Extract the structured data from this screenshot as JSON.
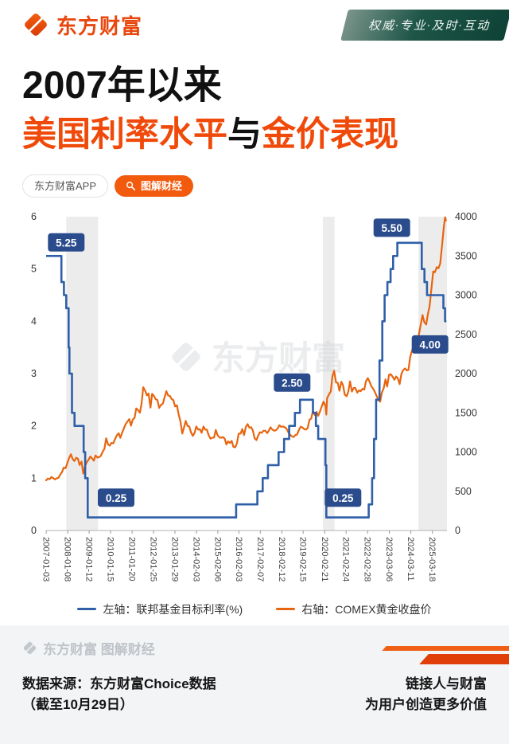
{
  "header": {
    "brand": "东方财富",
    "slogan": "权威·专业·及时·互动"
  },
  "title": {
    "line1": "2007年以来",
    "line2_part1": "美国利率水平",
    "line2_part2": "与",
    "line2_part3": "金价表现"
  },
  "badges": {
    "app": "东方财富APP",
    "channel": "图解财经"
  },
  "legend": [
    {
      "label": "左轴：联邦基金目标利率(%)",
      "color": "#2e5fa8"
    },
    {
      "label": "右轴：COMEX黄金收盘价",
      "color": "#e8650f"
    }
  ],
  "watermark": {
    "chart": "东方财富",
    "footer": "东方财富 图解财经"
  },
  "footer": {
    "source_line1": "数据来源：东方财富Choice数据",
    "source_line2": "（截至10月29日）",
    "slogan_line1": "链接人与财富",
    "slogan_line2": "为用户创造更多价值"
  },
  "colors": {
    "brand_orange": "#e8470d",
    "title_orange": "#f04a0b",
    "badge_orange": "#f25a0d",
    "fed_blue": "#2e5fa8",
    "gold_orange": "#e8650f",
    "annotation_navy": "#2b4c8c",
    "band_gray": "#ececec"
  },
  "chart_data": {
    "type": "line",
    "x_domain": [
      2007.0,
      2025.9
    ],
    "left_axis": {
      "label": "联邦基金目标利率(%)",
      "range": [
        0,
        6
      ],
      "ticks": [
        0,
        1,
        2,
        3,
        4,
        5,
        6
      ]
    },
    "right_axis": {
      "label": "COMEX黄金收盘价",
      "range": [
        0,
        4000
      ],
      "ticks": [
        0,
        500,
        1000,
        1500,
        2000,
        2500,
        3000,
        3500,
        4000
      ]
    },
    "x_tick_labels": [
      "2007-01-03",
      "2008-01-08",
      "2009-01-12",
      "2010-01-15",
      "2011-01-20",
      "2012-01-25",
      "2013-01-29",
      "2014-02-03",
      "2015-02-06",
      "2016-02-03",
      "2017-02-07",
      "2018-02-12",
      "2019-02-15",
      "2020-02-21",
      "2021-02-24",
      "2022-02-28",
      "2023-03-06",
      "2024-03-11",
      "2025-03-18"
    ],
    "bands": [
      [
        2007.95,
        2009.45
      ],
      [
        2020.05,
        2020.6
      ],
      [
        2024.55,
        2025.9
      ]
    ],
    "annotations": [
      {
        "text": "5.25",
        "x": 2007.95,
        "y": 5.5
      },
      {
        "text": "0.25",
        "x": 2010.3,
        "y": 0.62
      },
      {
        "text": "2.50",
        "x": 2018.6,
        "y": 2.82
      },
      {
        "text": "0.25",
        "x": 2021.0,
        "y": 0.62
      },
      {
        "text": "5.50",
        "x": 2023.3,
        "y": 5.78
      },
      {
        "text": "4.00",
        "x": 2025.1,
        "y": 3.55
      }
    ],
    "series": [
      {
        "name": "联邦基金目标利率(%)",
        "axis": "left",
        "color": "#2e5fa8",
        "step": true,
        "points": [
          [
            2007.0,
            5.25
          ],
          [
            2007.72,
            4.75
          ],
          [
            2007.84,
            4.5
          ],
          [
            2007.95,
            4.25
          ],
          [
            2008.06,
            3.5
          ],
          [
            2008.1,
            3.0
          ],
          [
            2008.22,
            2.25
          ],
          [
            2008.34,
            2.0
          ],
          [
            2008.77,
            1.5
          ],
          [
            2008.84,
            1.0
          ],
          [
            2008.96,
            0.25
          ],
          [
            2015.96,
            0.5
          ],
          [
            2016.96,
            0.75
          ],
          [
            2017.21,
            1.0
          ],
          [
            2017.46,
            1.25
          ],
          [
            2017.96,
            1.5
          ],
          [
            2018.22,
            1.75
          ],
          [
            2018.46,
            2.0
          ],
          [
            2018.73,
            2.25
          ],
          [
            2018.97,
            2.5
          ],
          [
            2019.58,
            2.25
          ],
          [
            2019.72,
            2.0
          ],
          [
            2019.83,
            1.75
          ],
          [
            2020.17,
            1.25
          ],
          [
            2020.21,
            0.25
          ],
          [
            2022.21,
            0.5
          ],
          [
            2022.37,
            1.0
          ],
          [
            2022.46,
            1.75
          ],
          [
            2022.56,
            2.5
          ],
          [
            2022.72,
            3.25
          ],
          [
            2022.85,
            4.0
          ],
          [
            2022.96,
            4.5
          ],
          [
            2023.09,
            4.75
          ],
          [
            2023.24,
            5.0
          ],
          [
            2023.36,
            5.25
          ],
          [
            2023.56,
            5.5
          ],
          [
            2024.71,
            5.0
          ],
          [
            2024.84,
            4.75
          ],
          [
            2024.96,
            4.5
          ],
          [
            2025.73,
            4.25
          ],
          [
            2025.81,
            4.0
          ],
          [
            2025.87,
            4.0
          ]
        ]
      },
      {
        "name": "COMEX黄金收盘价",
        "axis": "right",
        "color": "#e8650f",
        "step": false,
        "points": [
          [
            2007.0,
            640
          ],
          [
            2007.08,
            662
          ],
          [
            2007.17,
            655
          ],
          [
            2007.25,
            682
          ],
          [
            2007.33,
            668
          ],
          [
            2007.42,
            652
          ],
          [
            2007.5,
            666
          ],
          [
            2007.58,
            672
          ],
          [
            2007.67,
            715
          ],
          [
            2007.75,
            745
          ],
          [
            2007.83,
            802
          ],
          [
            2007.92,
            794
          ],
          [
            2008.0,
            862
          ],
          [
            2008.08,
            922
          ],
          [
            2008.17,
            972
          ],
          [
            2008.25,
            912
          ],
          [
            2008.33,
            886
          ],
          [
            2008.42,
            928
          ],
          [
            2008.5,
            916
          ],
          [
            2008.58,
            836
          ],
          [
            2008.67,
            878
          ],
          [
            2008.75,
            726
          ],
          [
            2008.83,
            816
          ],
          [
            2008.92,
            872
          ],
          [
            2009.0,
            902
          ],
          [
            2009.08,
            942
          ],
          [
            2009.17,
            918
          ],
          [
            2009.25,
            890
          ],
          [
            2009.33,
            956
          ],
          [
            2009.42,
            930
          ],
          [
            2009.5,
            936
          ],
          [
            2009.58,
            952
          ],
          [
            2009.67,
            1006
          ],
          [
            2009.75,
            1042
          ],
          [
            2009.83,
            1176
          ],
          [
            2009.92,
            1096
          ],
          [
            2010.0,
            1082
          ],
          [
            2010.08,
            1116
          ],
          [
            2010.17,
            1112
          ],
          [
            2010.25,
            1166
          ],
          [
            2010.33,
            1212
          ],
          [
            2010.42,
            1240
          ],
          [
            2010.5,
            1182
          ],
          [
            2010.58,
            1246
          ],
          [
            2010.67,
            1306
          ],
          [
            2010.75,
            1356
          ],
          [
            2010.83,
            1386
          ],
          [
            2010.92,
            1420
          ],
          [
            2011.0,
            1336
          ],
          [
            2011.08,
            1412
          ],
          [
            2011.17,
            1436
          ],
          [
            2011.25,
            1556
          ],
          [
            2011.33,
            1536
          ],
          [
            2011.42,
            1502
          ],
          [
            2011.5,
            1616
          ],
          [
            2011.58,
            1826
          ],
          [
            2011.67,
            1782
          ],
          [
            2011.75,
            1722
          ],
          [
            2011.83,
            1746
          ],
          [
            2011.92,
            1566
          ],
          [
            2012.0,
            1742
          ],
          [
            2012.08,
            1716
          ],
          [
            2012.17,
            1672
          ],
          [
            2012.25,
            1662
          ],
          [
            2012.33,
            1562
          ],
          [
            2012.42,
            1602
          ],
          [
            2012.5,
            1616
          ],
          [
            2012.58,
            1692
          ],
          [
            2012.67,
            1776
          ],
          [
            2012.75,
            1722
          ],
          [
            2012.83,
            1716
          ],
          [
            2012.92,
            1676
          ],
          [
            2013.0,
            1662
          ],
          [
            2013.08,
            1582
          ],
          [
            2013.17,
            1596
          ],
          [
            2013.25,
            1476
          ],
          [
            2013.33,
            1396
          ],
          [
            2013.42,
            1236
          ],
          [
            2013.5,
            1312
          ],
          [
            2013.58,
            1396
          ],
          [
            2013.67,
            1332
          ],
          [
            2013.75,
            1326
          ],
          [
            2013.83,
            1252
          ],
          [
            2013.92,
            1206
          ],
          [
            2014.0,
            1246
          ],
          [
            2014.08,
            1326
          ],
          [
            2014.17,
            1286
          ],
          [
            2014.25,
            1292
          ],
          [
            2014.33,
            1246
          ],
          [
            2014.42,
            1326
          ],
          [
            2014.5,
            1286
          ],
          [
            2014.58,
            1286
          ],
          [
            2014.67,
            1212
          ],
          [
            2014.75,
            1172
          ],
          [
            2014.83,
            1182
          ],
          [
            2014.92,
            1186
          ],
          [
            2015.0,
            1282
          ],
          [
            2015.08,
            1216
          ],
          [
            2015.17,
            1186
          ],
          [
            2015.25,
            1182
          ],
          [
            2015.33,
            1192
          ],
          [
            2015.42,
            1172
          ],
          [
            2015.5,
            1096
          ],
          [
            2015.58,
            1136
          ],
          [
            2015.67,
            1116
          ],
          [
            2015.75,
            1142
          ],
          [
            2015.83,
            1066
          ],
          [
            2015.92,
            1062
          ],
          [
            2016.0,
            1116
          ],
          [
            2016.08,
            1236
          ],
          [
            2016.17,
            1236
          ],
          [
            2016.25,
            1292
          ],
          [
            2016.33,
            1216
          ],
          [
            2016.42,
            1322
          ],
          [
            2016.5,
            1356
          ],
          [
            2016.58,
            1312
          ],
          [
            2016.67,
            1316
          ],
          [
            2016.75,
            1272
          ],
          [
            2016.83,
            1176
          ],
          [
            2016.92,
            1152
          ],
          [
            2017.0,
            1212
          ],
          [
            2017.08,
            1252
          ],
          [
            2017.17,
            1246
          ],
          [
            2017.25,
            1272
          ],
          [
            2017.33,
            1272
          ],
          [
            2017.42,
            1242
          ],
          [
            2017.5,
            1272
          ],
          [
            2017.58,
            1316
          ],
          [
            2017.67,
            1286
          ],
          [
            2017.75,
            1272
          ],
          [
            2017.83,
            1276
          ],
          [
            2017.92,
            1302
          ],
          [
            2018.0,
            1342
          ],
          [
            2018.08,
            1322
          ],
          [
            2018.17,
            1326
          ],
          [
            2018.25,
            1316
          ],
          [
            2018.33,
            1302
          ],
          [
            2018.42,
            1252
          ],
          [
            2018.5,
            1222
          ],
          [
            2018.58,
            1202
          ],
          [
            2018.67,
            1192
          ],
          [
            2018.75,
            1216
          ],
          [
            2018.83,
            1222
          ],
          [
            2018.92,
            1282
          ],
          [
            2019.0,
            1322
          ],
          [
            2019.08,
            1316
          ],
          [
            2019.17,
            1292
          ],
          [
            2019.25,
            1286
          ],
          [
            2019.33,
            1306
          ],
          [
            2019.42,
            1412
          ],
          [
            2019.5,
            1426
          ],
          [
            2019.58,
            1526
          ],
          [
            2019.67,
            1472
          ],
          [
            2019.75,
            1512
          ],
          [
            2019.83,
            1462
          ],
          [
            2019.92,
            1522
          ],
          [
            2020.0,
            1586
          ],
          [
            2020.08,
            1642
          ],
          [
            2020.17,
            1592
          ],
          [
            2020.21,
            1478
          ],
          [
            2020.25,
            1686
          ],
          [
            2020.33,
            1732
          ],
          [
            2020.42,
            1772
          ],
          [
            2020.5,
            1966
          ],
          [
            2020.58,
            2036
          ],
          [
            2020.67,
            1886
          ],
          [
            2020.75,
            1882
          ],
          [
            2020.83,
            1782
          ],
          [
            2020.92,
            1896
          ],
          [
            2021.0,
            1852
          ],
          [
            2021.08,
            1732
          ],
          [
            2021.17,
            1712
          ],
          [
            2021.25,
            1772
          ],
          [
            2021.33,
            1902
          ],
          [
            2021.42,
            1772
          ],
          [
            2021.5,
            1816
          ],
          [
            2021.58,
            1816
          ],
          [
            2021.67,
            1756
          ],
          [
            2021.75,
            1786
          ],
          [
            2021.83,
            1776
          ],
          [
            2021.92,
            1806
          ],
          [
            2022.0,
            1796
          ],
          [
            2022.08,
            1902
          ],
          [
            2022.17,
            1942
          ],
          [
            2022.25,
            1896
          ],
          [
            2022.33,
            1842
          ],
          [
            2022.42,
            1806
          ],
          [
            2022.5,
            1766
          ],
          [
            2022.58,
            1716
          ],
          [
            2022.67,
            1662
          ],
          [
            2022.75,
            1642
          ],
          [
            2022.83,
            1756
          ],
          [
            2022.92,
            1816
          ],
          [
            2023.0,
            1926
          ],
          [
            2023.08,
            1836
          ],
          [
            2023.17,
            1986
          ],
          [
            2023.25,
            1992
          ],
          [
            2023.33,
            1962
          ],
          [
            2023.42,
            1922
          ],
          [
            2023.5,
            1962
          ],
          [
            2023.58,
            1942
          ],
          [
            2023.67,
            1866
          ],
          [
            2023.75,
            1996
          ],
          [
            2023.83,
            2042
          ],
          [
            2023.92,
            2066
          ],
          [
            2024.0,
            2042
          ],
          [
            2024.08,
            2046
          ],
          [
            2024.17,
            2216
          ],
          [
            2024.25,
            2292
          ],
          [
            2024.33,
            2346
          ],
          [
            2024.42,
            2332
          ],
          [
            2024.5,
            2446
          ],
          [
            2024.58,
            2502
          ],
          [
            2024.67,
            2636
          ],
          [
            2024.75,
            2746
          ],
          [
            2024.83,
            2656
          ],
          [
            2024.92,
            2626
          ],
          [
            2025.0,
            2756
          ],
          [
            2025.08,
            2856
          ],
          [
            2025.17,
            3086
          ],
          [
            2025.25,
            3302
          ],
          [
            2025.33,
            3292
          ],
          [
            2025.42,
            3356
          ],
          [
            2025.5,
            3342
          ],
          [
            2025.58,
            3402
          ],
          [
            2025.67,
            3642
          ],
          [
            2025.75,
            3862
          ],
          [
            2025.81,
            3992
          ],
          [
            2025.85,
            3952
          ]
        ]
      }
    ]
  }
}
